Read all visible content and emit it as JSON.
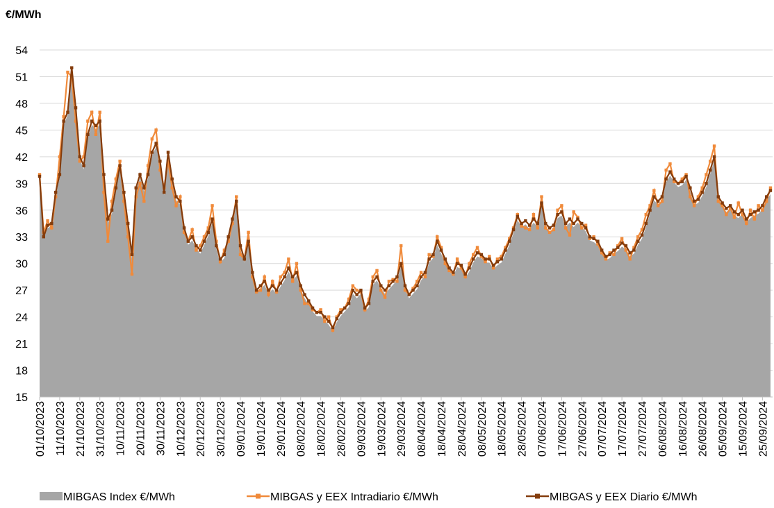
{
  "chart_data": {
    "type": "line",
    "y_label": "€/MWh",
    "legend": "bottom",
    "grid": true,
    "ylim": [
      15,
      54
    ],
    "yticks": [
      15,
      18,
      21,
      24,
      27,
      30,
      33,
      36,
      39,
      42,
      45,
      48,
      51,
      54
    ],
    "categories": [
      "01/10/2023",
      null,
      null,
      null,
      null,
      "11/10/2023",
      null,
      null,
      null,
      null,
      "21/10/2023",
      null,
      null,
      null,
      null,
      "31/10/2023",
      null,
      null,
      null,
      null,
      "10/11/2023",
      null,
      null,
      null,
      null,
      "20/11/2023",
      null,
      null,
      null,
      null,
      "30/11/2023",
      null,
      null,
      null,
      null,
      "10/12/2023",
      null,
      null,
      null,
      null,
      "20/12/2023",
      null,
      null,
      null,
      null,
      "30/12/2023",
      null,
      null,
      null,
      null,
      "09/01/2024",
      null,
      null,
      null,
      null,
      "19/01/2024",
      null,
      null,
      null,
      null,
      "29/01/2024",
      null,
      null,
      null,
      null,
      "08/02/2024",
      null,
      null,
      null,
      null,
      "18/02/2024",
      null,
      null,
      null,
      null,
      "28/02/2024",
      null,
      null,
      null,
      null,
      "09/03/2024",
      null,
      null,
      null,
      null,
      "19/03/2024",
      null,
      null,
      null,
      null,
      "29/03/2024",
      null,
      null,
      null,
      null,
      "08/04/2024",
      null,
      null,
      null,
      null,
      "18/04/2024",
      null,
      null,
      null,
      null,
      "28/04/2024",
      null,
      null,
      null,
      null,
      "08/05/2024",
      null,
      null,
      null,
      null,
      "18/05/2024",
      null,
      null,
      null,
      null,
      "28/05/2024",
      null,
      null,
      null,
      null,
      "07/06/2024",
      null,
      null,
      null,
      null,
      "17/06/2024",
      null,
      null,
      null,
      null,
      "27/06/2024",
      null,
      null,
      null,
      null,
      "07/07/2024",
      null,
      null,
      null,
      null,
      "17/07/2024",
      null,
      null,
      null,
      null,
      "27/07/2024",
      null,
      null,
      null,
      null,
      "06/08/2024",
      null,
      null,
      null,
      null,
      "16/08/2024",
      null,
      null,
      null,
      null,
      "26/08/2024",
      null,
      null,
      null,
      null,
      "05/09/2024",
      null,
      null,
      null,
      null,
      "15/09/2024",
      null,
      null,
      null,
      null,
      "25/09/2024",
      null,
      null
    ],
    "series": [
      {
        "name": "MIBGAS Index €/MWh",
        "style": "area",
        "color": "#a6a6a6",
        "values": [
          39.5,
          32.8,
          34.0,
          34.2,
          37.6,
          39.6,
          45.6,
          46.7,
          51.6,
          47.1,
          41.7,
          40.6,
          44.1,
          45.6,
          45.1,
          45.6,
          39.7,
          34.6,
          35.6,
          38.1,
          40.6,
          37.7,
          34.1,
          30.6,
          38.1,
          39.6,
          38.1,
          39.6,
          42.1,
          43.1,
          41.1,
          37.7,
          42.1,
          39.1,
          37.1,
          36.6,
          33.7,
          32.1,
          32.6,
          31.7,
          31.1,
          32.1,
          33.1,
          34.6,
          31.6,
          30.1,
          30.6,
          32.6,
          34.6,
          36.6,
          31.6,
          30.1,
          32.1,
          28.6,
          26.7,
          27.1,
          27.6,
          26.6,
          27.1,
          26.6,
          27.4,
          28.1,
          29.1,
          28.1,
          28.6,
          27.1,
          26.1,
          25.4,
          24.6,
          24.1,
          24.1,
          23.6,
          23.1,
          22.4,
          23.4,
          24.1,
          24.6,
          25.1,
          26.6,
          26.1,
          26.6,
          24.6,
          25.1,
          27.6,
          28.1,
          27.1,
          26.6,
          27.1,
          27.6,
          28.1,
          29.6,
          27.1,
          26.1,
          26.6,
          27.1,
          28.1,
          28.6,
          30.1,
          30.6,
          32.1,
          31.1,
          30.1,
          29.1,
          28.6,
          29.6,
          29.4,
          28.4,
          29.1,
          30.1,
          30.8,
          30.6,
          30.1,
          30.1,
          29.4,
          29.8,
          30.1,
          31.1,
          32.1,
          33.4,
          34.9,
          34.1,
          34.4,
          33.9,
          34.6,
          34.1,
          36.4,
          34.1,
          33.6,
          33.9,
          35.1,
          35.4,
          34.1,
          34.6,
          34.1,
          34.6,
          34.1,
          33.6,
          32.6,
          32.4,
          32.1,
          31.1,
          30.4,
          30.6,
          31.1,
          31.4,
          31.9,
          31.6,
          30.8,
          31.1,
          32.1,
          32.8,
          34.1,
          35.6,
          37.1,
          36.6,
          37.1,
          39.1,
          39.9,
          39.1,
          38.6,
          38.8,
          39.4,
          38.1,
          36.6,
          36.8,
          37.6,
          38.6,
          40.1,
          41.6,
          37.1,
          36.4,
          35.8,
          36.1,
          35.4,
          35.1,
          35.6,
          34.6,
          35.1,
          35.4,
          35.6,
          36.1,
          37.1,
          37.8
        ]
      },
      {
        "name": "MIBGAS y EEX Intradiario €/MWh",
        "style": "line",
        "color": "#f08a3a",
        "values": [
          40.0,
          33.5,
          34.8,
          34.0,
          37.5,
          42.0,
          46.5,
          51.5,
          51.0,
          46.0,
          41.5,
          42.0,
          46.0,
          47.0,
          44.5,
          47.0,
          38.0,
          32.5,
          37.0,
          39.5,
          41.5,
          37.0,
          33.0,
          28.8,
          37.5,
          39.0,
          37.0,
          41.0,
          44.0,
          45.0,
          40.5,
          38.5,
          41.5,
          38.5,
          36.5,
          37.5,
          33.5,
          32.5,
          33.8,
          31.5,
          32.0,
          33.0,
          34.0,
          36.5,
          32.5,
          30.2,
          31.5,
          32.5,
          34.5,
          37.5,
          31.0,
          30.5,
          33.5,
          28.5,
          26.8,
          27.0,
          28.5,
          26.5,
          28.0,
          26.8,
          28.5,
          29.0,
          30.5,
          28.0,
          30.0,
          27.0,
          25.5,
          25.5,
          24.8,
          24.5,
          24.8,
          23.5,
          24.0,
          22.5,
          24.0,
          24.8,
          25.0,
          26.0,
          27.5,
          27.0,
          26.8,
          24.8,
          26.0,
          28.5,
          29.2,
          27.0,
          26.2,
          28.0,
          28.2,
          28.0,
          32.0,
          27.0,
          26.5,
          27.2,
          28.0,
          29.0,
          28.5,
          31.0,
          30.8,
          33.0,
          31.8,
          30.0,
          29.2,
          28.8,
          30.5,
          29.5,
          28.5,
          30.0,
          31.0,
          31.8,
          30.8,
          30.2,
          30.8,
          29.5,
          30.5,
          30.8,
          31.8,
          32.8,
          34.0,
          35.5,
          34.2,
          34.0,
          33.8,
          35.5,
          34.0,
          37.5,
          34.0,
          33.5,
          33.8,
          36.0,
          36.5,
          34.0,
          33.2,
          35.8,
          35.2,
          34.0,
          34.3,
          32.8,
          33.0,
          32.2,
          31.2,
          30.5,
          31.2,
          31.0,
          32.0,
          32.8,
          31.5,
          30.5,
          31.8,
          33.0,
          33.8,
          35.5,
          36.5,
          38.2,
          36.5,
          37.0,
          40.5,
          41.2,
          39.2,
          39.0,
          39.5,
          40.0,
          37.5,
          36.5,
          37.5,
          38.5,
          40.0,
          41.5,
          43.2,
          37.0,
          36.5,
          35.5,
          36.2,
          35.2,
          36.8,
          35.5,
          34.5,
          36.0,
          35.0,
          36.5,
          36.0,
          37.0,
          38.5
        ]
      },
      {
        "name": "MIBGAS y EEX Diario €/MWh",
        "style": "line",
        "color": "#843c0c",
        "values": [
          39.8,
          33.0,
          34.3,
          34.5,
          38.0,
          40.0,
          46.0,
          47.0,
          52.0,
          47.5,
          42.0,
          41.0,
          44.5,
          46.0,
          45.5,
          46.0,
          40.0,
          35.0,
          36.0,
          38.5,
          41.0,
          38.0,
          34.5,
          31.0,
          38.5,
          40.0,
          38.5,
          40.0,
          42.5,
          43.5,
          41.5,
          38.0,
          42.5,
          39.5,
          37.5,
          37.0,
          34.0,
          32.5,
          33.0,
          32.0,
          31.5,
          32.5,
          33.5,
          35.0,
          32.0,
          30.5,
          31.0,
          33.0,
          35.0,
          37.0,
          32.0,
          30.5,
          32.5,
          29.0,
          27.0,
          27.5,
          28.0,
          27.0,
          27.5,
          27.0,
          27.8,
          28.5,
          29.5,
          28.5,
          29.0,
          27.5,
          26.5,
          25.8,
          25.0,
          24.5,
          24.5,
          24.0,
          23.5,
          22.8,
          23.8,
          24.5,
          25.0,
          25.5,
          27.0,
          26.5,
          27.0,
          25.0,
          25.5,
          28.0,
          28.5,
          27.5,
          27.0,
          27.5,
          28.0,
          28.5,
          30.0,
          27.5,
          26.5,
          27.0,
          27.5,
          28.5,
          29.0,
          30.5,
          31.0,
          32.5,
          31.5,
          30.5,
          29.5,
          29.0,
          30.0,
          29.8,
          28.8,
          29.5,
          30.5,
          31.2,
          31.0,
          30.5,
          30.5,
          29.8,
          30.2,
          30.5,
          31.5,
          32.5,
          33.8,
          35.3,
          34.5,
          34.8,
          34.3,
          35.0,
          34.5,
          36.8,
          34.5,
          34.0,
          34.3,
          35.5,
          35.8,
          34.5,
          35.0,
          34.5,
          35.0,
          34.5,
          34.0,
          33.0,
          32.8,
          32.5,
          31.5,
          30.8,
          31.0,
          31.5,
          31.8,
          32.3,
          32.0,
          31.2,
          31.5,
          32.5,
          33.2,
          34.5,
          36.0,
          37.5,
          37.0,
          37.5,
          39.5,
          40.3,
          39.5,
          39.0,
          39.2,
          39.8,
          38.5,
          37.0,
          37.2,
          38.0,
          39.0,
          40.5,
          42.0,
          37.5,
          36.8,
          36.2,
          36.5,
          35.8,
          35.5,
          36.0,
          35.0,
          35.5,
          35.8,
          36.0,
          36.5,
          37.5,
          38.2
        ]
      }
    ]
  }
}
